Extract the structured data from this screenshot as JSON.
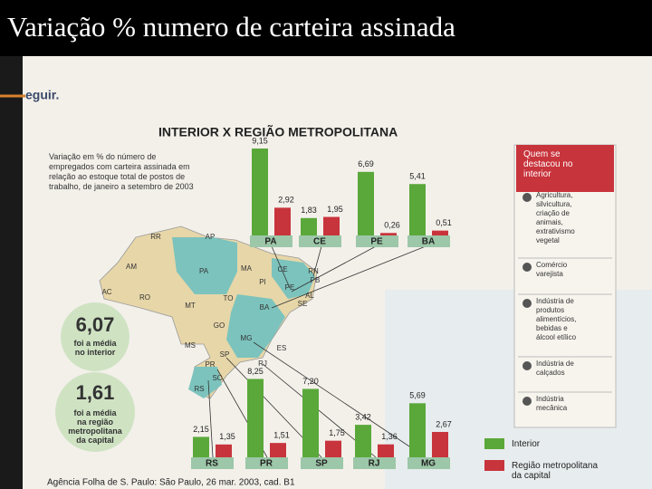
{
  "slide_title": "Variação % numero de carteira assinada",
  "background_fragment": "eguir.",
  "chart_data": {
    "type": "bar",
    "title": "INTERIOR X REGIÃO METROPOLITANA",
    "description": "Variação em % do número de empregados com carteira assinada em relação ao estoque total de postos de trabalho, de janeiro a setembro de 2003",
    "categories": [
      "PA",
      "CE",
      "PE",
      "BA",
      "RS",
      "PR",
      "SP",
      "RJ",
      "MG"
    ],
    "series": [
      {
        "name": "Interior",
        "color": "#5aa83a",
        "values": [
          9.15,
          1.83,
          6.69,
          5.41,
          2.15,
          8.25,
          7.2,
          3.42,
          5.69
        ],
        "value_labels": [
          "9,15",
          "1,83",
          "6,69",
          "5,41",
          "2,15",
          "8,25",
          "7,20",
          "3,42",
          "5,69"
        ]
      },
      {
        "name": "Região metropolitana da capital",
        "color": "#c8343c",
        "values": [
          2.92,
          1.95,
          0.26,
          0.51,
          1.35,
          1.51,
          1.75,
          1.36,
          2.67
        ],
        "value_labels": [
          "2,92",
          "1,95",
          "0,26",
          "0,51",
          "1,35",
          "1,51",
          "1,75",
          "1,36",
          "2,67"
        ]
      }
    ],
    "annotations": [
      {
        "value": 6.07,
        "label": "6,07",
        "text": "foi a média no interior"
      },
      {
        "value": 1.61,
        "label": "1,61",
        "text": "foi a média na região metropolitana da capital"
      }
    ],
    "highlights": {
      "title": "Quem se destacou no interior",
      "items": [
        "Agricultura, silvicultura, criação de animais, extrativismo vegetal",
        "Comércio varejista",
        "Indústria de produtos alimentícios, bebidas e álcool etílico",
        "Indústria de calçados",
        "Indústria mecânica"
      ]
    },
    "map_labels": [
      "RR",
      "AP",
      "AM",
      "PA",
      "MA",
      "CE",
      "RN",
      "PB",
      "PE",
      "AL",
      "SE",
      "AC",
      "RO",
      "TO",
      "PI",
      "BA",
      "MT",
      "GO",
      "MG",
      "ES",
      "RJ",
      "SP",
      "MS",
      "PR",
      "SC",
      "RS"
    ],
    "source": "Agência Folha de S. Paulo: São Paulo, 26 mar. 2003, cad. B1"
  }
}
